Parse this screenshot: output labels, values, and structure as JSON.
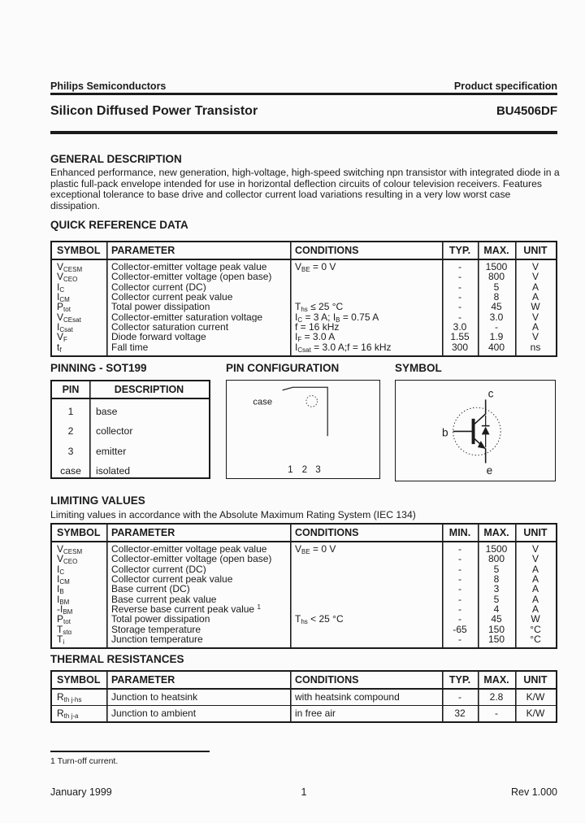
{
  "header": {
    "publisher": "Philips Semiconductors",
    "spec_type": "Product specification",
    "title": "Silicon Diffused Power Transistor",
    "part_number": "BU4506DF"
  },
  "general_description": {
    "heading": "GENERAL DESCRIPTION",
    "text": "Enhanced performance, new generation, high-voltage, high-speed switching npn transistor with integrated diode in a plastic full-pack envelope intended for use in horizontal deflection circuits of colour television receivers. Features exceptional tolerance to base drive and collector current load variations resulting in a very low worst case dissipation."
  },
  "quick_reference": {
    "heading": "QUICK REFERENCE DATA",
    "table": {
      "headers": [
        "SYMBOL",
        "PARAMETER",
        "CONDITIONS",
        "TYP.",
        "MAX.",
        "UNIT"
      ],
      "rows": [
        [
          [
            {
              "t": "V"
            },
            {
              "t": "CESM",
              "s": "sub"
            }
          ],
          "Collector-emitter voltage peak value",
          [
            {
              "t": "V"
            },
            {
              "t": "BE",
              "s": "sub"
            },
            {
              "t": " = 0 V"
            }
          ],
          "-",
          "1500",
          "V"
        ],
        [
          [
            {
              "t": "V"
            },
            {
              "t": "CEO",
              "s": "sub"
            }
          ],
          "Collector-emitter voltage (open base)",
          "",
          "-",
          "800",
          "V"
        ],
        [
          [
            {
              "t": "I"
            },
            {
              "t": "C",
              "s": "sub"
            }
          ],
          "Collector current (DC)",
          "",
          "-",
          "5",
          "A"
        ],
        [
          [
            {
              "t": "I"
            },
            {
              "t": "CM",
              "s": "sub"
            }
          ],
          "Collector current peak value",
          "",
          "-",
          "8",
          "A"
        ],
        [
          [
            {
              "t": "P"
            },
            {
              "t": "tot",
              "s": "sub"
            }
          ],
          "Total power dissipation",
          [
            {
              "t": "T"
            },
            {
              "t": "hs",
              "s": "sub"
            },
            {
              "t": " ≤ 25 °C"
            }
          ],
          "-",
          "45",
          "W"
        ],
        [
          [
            {
              "t": "V"
            },
            {
              "t": "CEsat",
              "s": "sub"
            }
          ],
          "Collector-emitter saturation voltage",
          [
            {
              "t": "I"
            },
            {
              "t": "C",
              "s": "sub"
            },
            {
              "t": " = 3 A; I"
            },
            {
              "t": "B",
              "s": "sub"
            },
            {
              "t": " = 0.75 A"
            }
          ],
          "-",
          "3.0",
          "V"
        ],
        [
          [
            {
              "t": "I"
            },
            {
              "t": "Csat",
              "s": "sub"
            }
          ],
          "Collector saturation current",
          "f = 16 kHz",
          "3.0",
          "-",
          "A"
        ],
        [
          [
            {
              "t": "V"
            },
            {
              "t": "F",
              "s": "sub"
            }
          ],
          "Diode forward voltage",
          [
            {
              "t": "I"
            },
            {
              "t": "F",
              "s": "sub"
            },
            {
              "t": " = 3.0 A"
            }
          ],
          "1.55",
          "1.9",
          "V"
        ],
        [
          [
            {
              "t": "t"
            },
            {
              "t": "f",
              "s": "sub"
            }
          ],
          "Fall time",
          [
            {
              "t": "I"
            },
            {
              "t": "Csat",
              "s": "sub"
            },
            {
              "t": " = 3.0 A;f = 16 kHz"
            }
          ],
          "300",
          "400",
          "ns"
        ]
      ]
    }
  },
  "pinning": {
    "heading": "PINNING - SOT199",
    "table": {
      "headers": [
        "PIN",
        "DESCRIPTION"
      ],
      "rows": [
        [
          "1",
          "base"
        ],
        [
          "2",
          "collector"
        ],
        [
          "3",
          "emitter"
        ],
        [
          "case",
          "isolated"
        ]
      ]
    }
  },
  "pin_configuration": {
    "heading": "PIN CONFIGURATION",
    "case_label": "case",
    "pin_numbers": [
      "1",
      "2",
      "3"
    ]
  },
  "symbol": {
    "heading": "SYMBOL",
    "labels": {
      "collector": "c",
      "base": "b",
      "emitter": "e"
    }
  },
  "limiting_values": {
    "heading": "LIMITING VALUES",
    "subtitle": "Limiting values in accordance with the Absolute Maximum Rating System (IEC 134)",
    "table": {
      "headers": [
        "SYMBOL",
        "PARAMETER",
        "CONDITIONS",
        "MIN.",
        "MAX.",
        "UNIT"
      ],
      "rows": [
        [
          [
            {
              "t": "V"
            },
            {
              "t": "CESM",
              "s": "sub"
            }
          ],
          "Collector-emitter voltage peak value",
          [
            {
              "t": "V"
            },
            {
              "t": "BE",
              "s": "sub"
            },
            {
              "t": " = 0 V"
            }
          ],
          "-",
          "1500",
          "V"
        ],
        [
          [
            {
              "t": "V"
            },
            {
              "t": "CEO",
              "s": "sub"
            }
          ],
          "Collector-emitter voltage (open base)",
          "",
          "-",
          "800",
          "V"
        ],
        [
          [
            {
              "t": "I"
            },
            {
              "t": "C",
              "s": "sub"
            }
          ],
          "Collector current (DC)",
          "",
          "-",
          "5",
          "A"
        ],
        [
          [
            {
              "t": "I"
            },
            {
              "t": "CM",
              "s": "sub"
            }
          ],
          "Collector current peak value",
          "",
          "-",
          "8",
          "A"
        ],
        [
          [
            {
              "t": "I"
            },
            {
              "t": "B",
              "s": "sub"
            }
          ],
          "Base current (DC)",
          "",
          "-",
          "3",
          "A"
        ],
        [
          [
            {
              "t": "I"
            },
            {
              "t": "BM",
              "s": "sub"
            }
          ],
          "Base current peak value",
          "",
          "-",
          "5",
          "A"
        ],
        [
          [
            {
              "t": "-I"
            },
            {
              "t": "BM",
              "s": "sub"
            }
          ],
          [
            {
              "t": "Reverse base current peak value "
            },
            {
              "t": "1",
              "s": "sup"
            }
          ],
          "",
          "-",
          "4",
          "A"
        ],
        [
          [
            {
              "t": "P"
            },
            {
              "t": "tot",
              "s": "sub"
            }
          ],
          "Total power dissipation",
          [
            {
              "t": "T"
            },
            {
              "t": "hs",
              "s": "sub"
            },
            {
              "t": " < 25 °C"
            }
          ],
          "-",
          "45",
          "W"
        ],
        [
          [
            {
              "t": "T"
            },
            {
              "t": "stg",
              "s": "sub"
            }
          ],
          "Storage temperature",
          "",
          "-65",
          "150",
          "°C"
        ],
        [
          [
            {
              "t": "T"
            },
            {
              "t": "j",
              "s": "sub"
            }
          ],
          "Junction temperature",
          "",
          "-",
          "150",
          "°C"
        ]
      ]
    }
  },
  "thermal_resistances": {
    "heading": "THERMAL RESISTANCES",
    "table": {
      "headers": [
        "SYMBOL",
        "PARAMETER",
        "CONDITIONS",
        "TYP.",
        "MAX.",
        "UNIT"
      ],
      "rows": [
        [
          [
            {
              "t": "R"
            },
            {
              "t": "th j-hs",
              "s": "sub"
            }
          ],
          "Junction to heatsink",
          "with heatsink compound",
          "-",
          "2.8",
          "K/W"
        ],
        [
          [
            {
              "t": "R"
            },
            {
              "t": "th j-a",
              "s": "sub"
            }
          ],
          "Junction to ambient",
          "in free air",
          "32",
          "-",
          "K/W"
        ]
      ]
    }
  },
  "footnote": {
    "text": "1 Turn-off current."
  },
  "footer": {
    "date": "January 1999",
    "page": "1",
    "revision": "Rev 1.000"
  }
}
